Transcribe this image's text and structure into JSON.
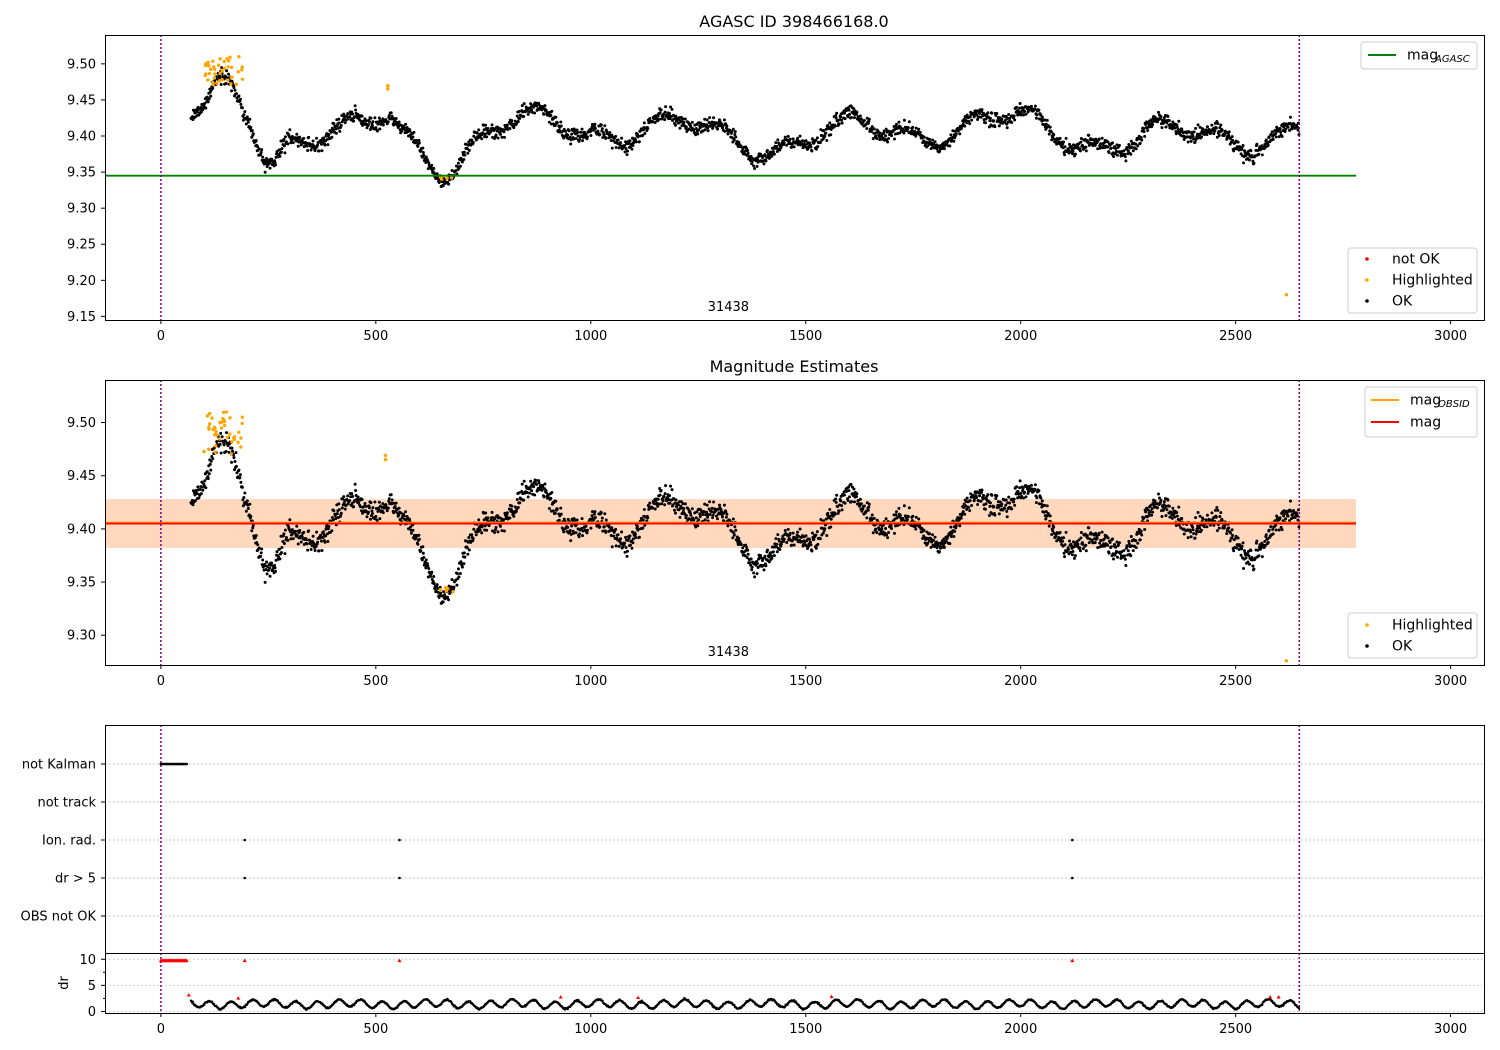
{
  "chart_data": [
    {
      "id": "top",
      "type": "scatter",
      "title": "AGASC ID 398466168.0",
      "xlim": [
        -130,
        3080
      ],
      "ylim": [
        9.145,
        9.54
      ],
      "xticks": [
        0,
        500,
        1000,
        1500,
        2000,
        2500,
        3000
      ],
      "yticks": [
        9.15,
        9.2,
        9.25,
        9.3,
        9.35,
        9.4,
        9.45,
        9.5
      ],
      "vlines": [
        0,
        2648
      ],
      "hlines": [
        {
          "y": 9.345,
          "x_end": 2780,
          "color": "#008000"
        }
      ],
      "annotation": {
        "text": "31438",
        "x": 1320
      },
      "line_legend": [
        {
          "label": "mag",
          "sub": "AGASC",
          "color": "#008000"
        }
      ],
      "point_legend": [
        {
          "label": "not OK",
          "color": "#ff0000"
        },
        {
          "label": "Highlighted",
          "color": "#ffa500"
        },
        {
          "label": "OK",
          "color": "#000000"
        }
      ],
      "highlight_clusters": [
        {
          "x": [
            100,
            190
          ],
          "y": [
            9.47,
            9.51
          ],
          "n": 40
        },
        {
          "x": [
            520,
            530
          ],
          "y": [
            9.465,
            9.47
          ],
          "n": 3
        },
        {
          "x": [
            645,
            680
          ],
          "y": [
            9.34,
            9.345
          ],
          "n": 5
        },
        {
          "x": [
            2618,
            2618
          ],
          "y": [
            9.18,
            9.18
          ],
          "n": 1
        }
      ]
    },
    {
      "id": "mid",
      "type": "scatter",
      "title": "Magnitude Estimates",
      "xlim": [
        -130,
        3080
      ],
      "ylim": [
        9.272,
        9.54
      ],
      "xticks": [
        0,
        500,
        1000,
        1500,
        2000,
        2500,
        3000
      ],
      "yticks": [
        9.3,
        9.35,
        9.4,
        9.45,
        9.5
      ],
      "vlines": [
        0,
        2648
      ],
      "band": {
        "y": [
          9.382,
          9.428
        ],
        "x_end": 2780
      },
      "hlines": [
        {
          "y": 9.406,
          "x_end": 2780,
          "color": "#ffa500"
        },
        {
          "y": 9.405,
          "x_end": 2780,
          "color": "#ff0000"
        }
      ],
      "annotation": {
        "text": "31438",
        "x": 1320
      },
      "line_legend": [
        {
          "label": "mag",
          "sub": "OBSID",
          "color": "#ffa500"
        },
        {
          "label": "mag",
          "sub": "",
          "color": "#ff0000"
        }
      ],
      "point_legend": [
        {
          "label": "Highlighted",
          "color": "#ffa500"
        },
        {
          "label": "OK",
          "color": "#000000"
        }
      ],
      "highlight_clusters": [
        {
          "x": [
            100,
            190
          ],
          "y": [
            9.47,
            9.51
          ],
          "n": 40
        },
        {
          "x": [
            520,
            530
          ],
          "y": [
            9.465,
            9.47
          ],
          "n": 3
        },
        {
          "x": [
            645,
            680
          ],
          "y": [
            9.34,
            9.345
          ],
          "n": 5
        },
        {
          "x": [
            2618,
            2618
          ],
          "y": [
            9.274,
            9.276
          ],
          "n": 1
        }
      ]
    },
    {
      "id": "flags",
      "type": "scatter",
      "xlim": [
        -130,
        3080
      ],
      "categories": [
        "not Kalman",
        "not track",
        "Ion. rad.",
        "dr > 5",
        "OBS not OK"
      ],
      "vlines": [
        0,
        2648
      ],
      "flag_points": [
        {
          "category": "not Kalman",
          "x": [
            0,
            60
          ],
          "n": 25
        },
        {
          "category": "Ion. rad.",
          "x": [
            195,
            555,
            2120
          ],
          "n": 3
        },
        {
          "category": "dr > 5",
          "x": [
            195,
            555,
            2120
          ],
          "n": 3
        }
      ]
    },
    {
      "id": "dr",
      "type": "scatter",
      "ylabel": "dr",
      "xlim": [
        -130,
        3080
      ],
      "ylim": [
        -0.3,
        11.2
      ],
      "xticks": [
        0,
        500,
        1000,
        1500,
        2000,
        2500,
        3000
      ],
      "yticks": [
        0,
        5,
        10
      ],
      "vlines": [
        0,
        2648
      ],
      "red_points": [
        {
          "x": [
            0,
            60
          ],
          "y": 9.8,
          "n": 25
        },
        {
          "x": [
            195,
            195
          ],
          "y": 9.8,
          "n": 1
        },
        {
          "x": [
            555,
            555
          ],
          "y": 9.8,
          "n": 1
        },
        {
          "x": [
            2120,
            2120
          ],
          "y": 9.8,
          "n": 1
        },
        {
          "x": [
            65,
            65
          ],
          "y": 3.2,
          "n": 1
        },
        {
          "x": [
            180,
            180
          ],
          "y": 2.6,
          "n": 1
        },
        {
          "x": [
            930,
            930
          ],
          "y": 2.8,
          "n": 1
        },
        {
          "x": [
            1110,
            1110
          ],
          "y": 2.7,
          "n": 1
        },
        {
          "x": [
            1560,
            1560
          ],
          "y": 2.9,
          "n": 1
        },
        {
          "x": [
            2580,
            2600
          ],
          "y": 2.8,
          "n": 2
        }
      ]
    }
  ]
}
